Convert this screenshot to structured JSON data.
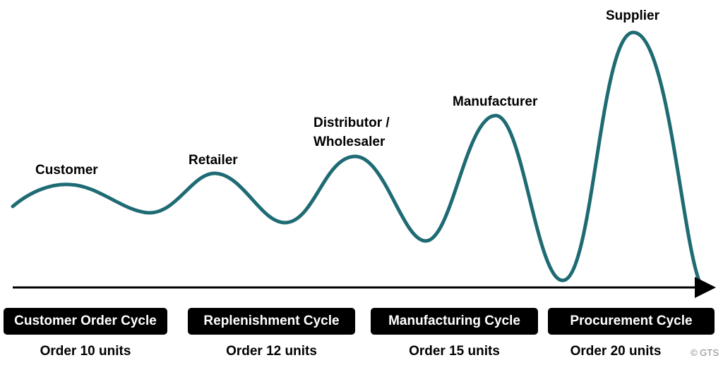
{
  "stages": {
    "customer": "Customer",
    "retailer": "Retailer",
    "distributor_line1": "Distributor /",
    "distributor_line2": "Wholesaler",
    "manufacturer": "Manufacturer",
    "supplier": "Supplier"
  },
  "cycles": [
    {
      "label": "Customer Order Cycle",
      "order": "Order 10 units"
    },
    {
      "label": "Replenishment Cycle",
      "order": "Order 12 units"
    },
    {
      "label": "Manufacturing Cycle",
      "order": "Order 15 units"
    },
    {
      "label": "Procurement Cycle",
      "order": "Order 20 units"
    }
  ],
  "copyright": "© GTS",
  "colors": {
    "wave": "#1f6b73",
    "box": "#000000",
    "box_text": "#ffffff"
  }
}
